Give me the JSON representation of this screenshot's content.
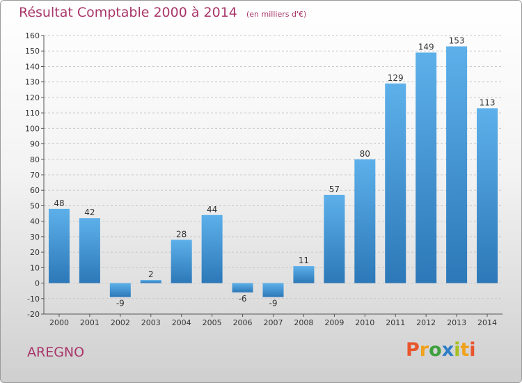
{
  "title": "Résultat Comptable 2000 à 2014",
  "subtitle": "(en milliers d'€)",
  "place": "AREGNO",
  "logo": {
    "text": "Proxiti",
    "colors": [
      "#e8552c",
      "#f0a21c",
      "#3fa040",
      "#2f7fc8",
      "#a8bf1f",
      "#f0a21c",
      "#e8552c"
    ]
  },
  "colors": {
    "bar_top": "#5db0ea",
    "bar_bottom": "#2c78b8",
    "title": "#a83569",
    "grid": "#c8c8c8"
  },
  "chart_data": {
    "type": "bar",
    "title": "Résultat Comptable 2000 à 2014",
    "categories": [
      "2000",
      "2001",
      "2002",
      "2003",
      "2004",
      "2005",
      "2006",
      "2007",
      "2008",
      "2009",
      "2010",
      "2011",
      "2012",
      "2013",
      "2014"
    ],
    "values": [
      48,
      42,
      -9,
      2,
      28,
      44,
      -6,
      -9,
      11,
      57,
      80,
      129,
      149,
      153,
      113
    ],
    "ylim": [
      -20,
      160
    ],
    "yticks": [
      -20,
      -10,
      0,
      10,
      20,
      30,
      40,
      50,
      60,
      70,
      80,
      90,
      100,
      110,
      120,
      130,
      140,
      150,
      160
    ],
    "grid": true,
    "xlabel": "",
    "ylabel": ""
  }
}
